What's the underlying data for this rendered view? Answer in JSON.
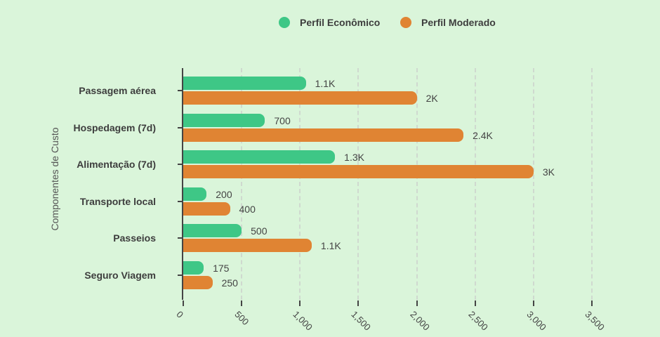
{
  "legend": [
    {
      "label": "Perfil Econômico",
      "color": "#3ec786"
    },
    {
      "label": "Perfil Moderado",
      "color": "#e08433"
    }
  ],
  "chart_data": {
    "type": "bar",
    "orientation": "horizontal",
    "title": "",
    "xlabel": "",
    "ylabel": "Componentes de Custo",
    "categories": [
      "Passagem aérea",
      "Hospedagem (7d)",
      "Alimentação (7d)",
      "Transporte local",
      "Passeios",
      "Seguro Viagem"
    ],
    "series": [
      {
        "name": "Perfil Econômico",
        "color": "#3ec786",
        "values": [
          1050,
          700,
          1300,
          200,
          500,
          175
        ],
        "labels": [
          "1.1K",
          "700",
          "1.3K",
          "200",
          "500",
          "175"
        ]
      },
      {
        "name": "Perfil Moderado",
        "color": "#e08433",
        "values": [
          2000,
          2400,
          3000,
          400,
          1100,
          250
        ],
        "labels": [
          "2K",
          "2.4K",
          "3K",
          "400",
          "1.1K",
          "250"
        ]
      }
    ],
    "xlim": [
      0,
      3500
    ],
    "xticks": [
      0,
      500,
      1000,
      1500,
      2000,
      2500,
      3000,
      3500
    ],
    "xtick_labels": [
      "0",
      "500",
      "1,000",
      "1,500",
      "2,000",
      "2,500",
      "3,000",
      "3,500"
    ],
    "grid": "vertical dashed",
    "legend_position": "top"
  }
}
